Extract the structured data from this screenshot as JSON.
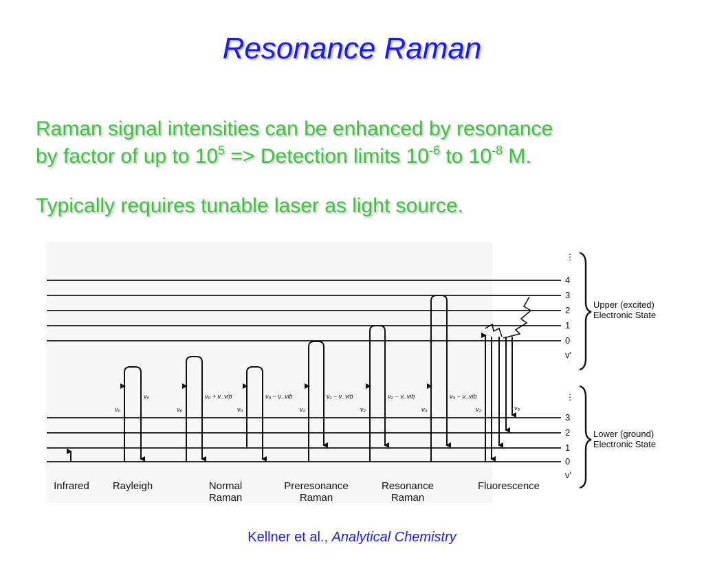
{
  "slide": {
    "title": "Resonance Raman",
    "bullet1": {
      "part1": "Raman signal intensities can be enhanced by resonance",
      "part2": "by factor of up to 10",
      "sup1": "5",
      "part3": " => Detection limits 10",
      "sup2": "-6",
      "part4": " to 10",
      "sup3": "-8",
      "part5": " M."
    },
    "bullet2": "Typically requires tunable laser as light source.",
    "citation": {
      "authors": "Kellner et al., ",
      "journal": "Analytical Chemistry"
    }
  },
  "colors": {
    "title": "#1919ff",
    "body_text": "#3cc43c",
    "citation": "#1919ff",
    "diagram_ink": "#111111"
  },
  "diagram": {
    "upper_state": {
      "levels": [
        "4",
        "3",
        "2",
        "1",
        "0",
        "v'"
      ],
      "label_line1": "Upper (excited)",
      "label_line2": "Electronic State"
    },
    "lower_state": {
      "levels": [
        "3",
        "2",
        "1",
        "0",
        "v'"
      ],
      "label_line1": "Lower (ground)",
      "label_line2": "Electronic State"
    },
    "processes": [
      {
        "name": "Infrared",
        "line2": ""
      },
      {
        "name": "Rayleigh",
        "line2": ""
      },
      {
        "name": "Normal",
        "line2": "Raman"
      },
      {
        "name": "Preresonance",
        "line2": "Raman"
      },
      {
        "name": "Resonance",
        "line2": "Raman"
      },
      {
        "name": "Fluorescence",
        "line2": ""
      }
    ],
    "transition_labels": {
      "rayleigh_up": "ν₀",
      "rayleigh_down": "ν₀",
      "normal_stokes_up": "ν₀",
      "normal_stokes_down": "ν₀ + ν_vib",
      "normal_anti_up": "ν₀",
      "normal_anti_down": "ν₀ − ν_vib",
      "preres_up": "ν₁",
      "preres_down": "ν₁ − ν_vib",
      "res_up": "ν₂",
      "res_down": "ν₂ − ν_vib",
      "res2_up": "ν₃",
      "res2_down": "ν₃ − ν_vib",
      "fluor_up": "ν₂",
      "fluor_down": "ν₃"
    }
  }
}
